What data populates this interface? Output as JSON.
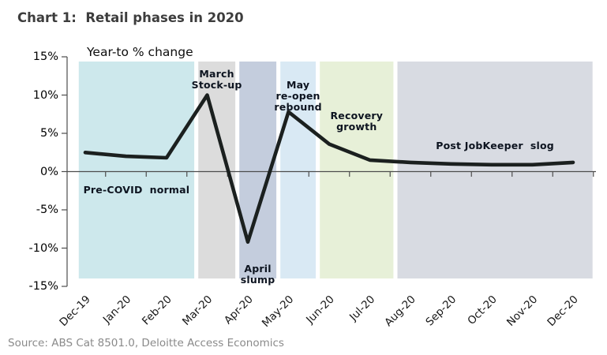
{
  "header": {
    "title": "Chart 1:  Retail phases in 2020"
  },
  "source_note": "Source: ABS Cat 8501.0, Deloitte Access Economics",
  "chart_data": {
    "type": "line",
    "title": "Chart 1:  Retail phases in 2020",
    "subtitle": "Year-to % change",
    "ylabel": "Year-to % change",
    "xlabel": "",
    "categories": [
      "Dec-19",
      "Jan-20",
      "Feb-20",
      "Mar-20",
      "Apr-20",
      "May-20",
      "Jun-20",
      "Jul-20",
      "Aug-20",
      "Sep-20",
      "Oct-20",
      "Nov-20",
      "Dec-20"
    ],
    "series": [
      {
        "name": "Retail year-to % change",
        "values": [
          2.5,
          2.0,
          1.8,
          10.0,
          -9.2,
          7.8,
          3.6,
          1.5,
          1.2,
          1.0,
          0.9,
          0.9,
          1.2
        ]
      }
    ],
    "ylim": [
      -15,
      15
    ],
    "y_ticks": [
      15,
      10,
      5,
      0,
      -5,
      -10,
      -15
    ],
    "y_tick_labels": [
      "15%",
      "10%",
      "5%",
      "0%",
      "-5%",
      "-10%",
      "-15%"
    ],
    "grid": false,
    "legend": "none",
    "line_color": "#1b201f",
    "axis_color": "#4d4d4d",
    "phases": [
      {
        "name": "pre-covid-normal",
        "label_lines": [
          "Pre-COVID  normal"
        ],
        "color": "#cde8ec",
        "span": [
          -0.16,
          2.68
        ],
        "label_value": -2.4
      },
      {
        "name": "march-stock-up",
        "label_lines": [
          "March",
          "Stock-up"
        ],
        "color": "#dcdcdc",
        "span": [
          2.78,
          3.69
        ],
        "label_value": 12.0
      },
      {
        "name": "april-slump",
        "label_lines": [
          "April",
          "slump"
        ],
        "color": "#c4cddd",
        "span": [
          3.79,
          4.7
        ],
        "label_value": -13.5
      },
      {
        "name": "may-reopen-rebound",
        "label_lines": [
          "May",
          "re-open",
          "rebound"
        ],
        "color": "#d9e9f4",
        "span": [
          4.8,
          5.67
        ],
        "label_value": 9.8
      },
      {
        "name": "recovery-growth",
        "label_lines": [
          "Recovery",
          "growth"
        ],
        "color": "#e7f0d8",
        "span": [
          5.77,
          7.58
        ],
        "label_value": 6.6
      },
      {
        "name": "post-jobkeeper-slog",
        "label_lines": [
          "Post JobKeeper  slog"
        ],
        "color": "#d8dbe2",
        "span": [
          7.68,
          12.48
        ],
        "label_value": 3.4
      }
    ]
  }
}
